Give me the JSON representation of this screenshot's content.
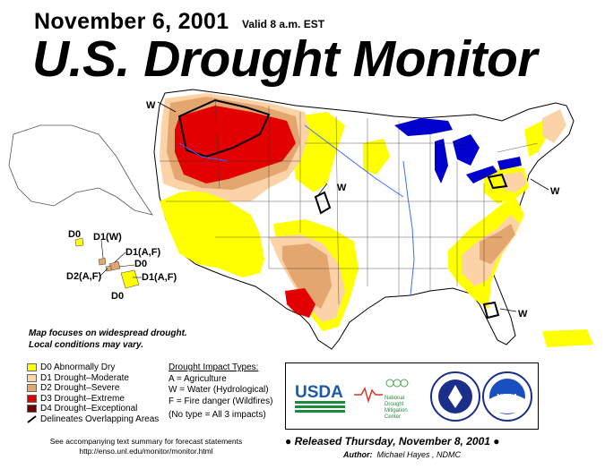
{
  "header": {
    "date": "November 6, 2001",
    "valid": "Valid 8 a.m. EST",
    "title": "U.S. Drought Monitor"
  },
  "map_labels": {
    "w_northwest": "W",
    "w_plains": "W",
    "w_northeast": "W",
    "w_southeast": "W",
    "hi_d0_left": "D0",
    "hi_d1w": "D1(W)",
    "hi_d1af_top": "D1(A,F)",
    "hi_d0_mid": "D0",
    "hi_d2af": "D2(A,F)",
    "hi_d1af_bottom": "D1(A,F)",
    "hi_d0_bottom": "D0"
  },
  "note": {
    "line1": "Map focuses on widespread drought.",
    "line2": "Local conditions may vary."
  },
  "legend": {
    "items": [
      {
        "label": "D0 Abnormally Dry",
        "color": "#ffff00"
      },
      {
        "label": "D1 Drought–Moderate",
        "color": "#fcd3a7"
      },
      {
        "label": "D2 Drought–Severe",
        "color": "#e4a66f"
      },
      {
        "label": "D3 Drought–Extreme",
        "color": "#e30000"
      },
      {
        "label": "D4 Drought–Exceptional",
        "color": "#730000"
      }
    ],
    "overlap_label": "Delineates Overlapping Areas"
  },
  "impacts": {
    "title": "Drought Impact Types:",
    "a": "A = Agriculture",
    "w": "W = Water (Hydrological)",
    "f": "F = Fire danger (Wildfires)",
    "none": "(No type = All 3 impacts)"
  },
  "logos": {
    "usda": "USDA",
    "ndmc_line1": "National",
    "ndmc_line2": "Drought",
    "ndmc_line3": "Mitigation",
    "ndmc_line4": "Center",
    "noaa": "NOAA"
  },
  "footer": {
    "released": "Released Thursday, November 8, 2001",
    "author_label": "Author:",
    "author_name": "Michael Hayes , NDMC",
    "summary_line1": "See accompanying text summary for forecast statements",
    "summary_line2": "http://enso.unl.edu/monitor/monitor.html"
  }
}
